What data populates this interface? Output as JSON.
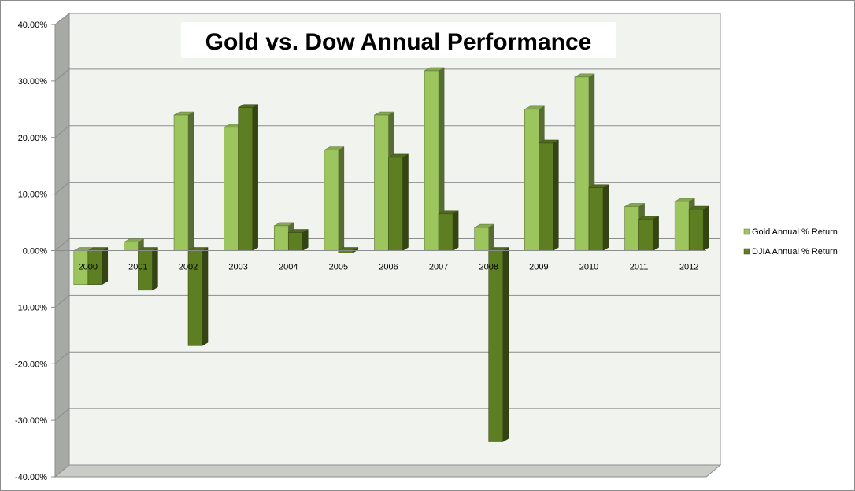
{
  "chart_data": {
    "type": "bar",
    "title": "Gold vs. Dow Annual Performance",
    "xlabel": "",
    "ylabel": "",
    "categories": [
      "2000",
      "2001",
      "2002",
      "2003",
      "2004",
      "2005",
      "2006",
      "2007",
      "2008",
      "2009",
      "2010",
      "2011",
      "2012"
    ],
    "series": [
      {
        "name": "Gold Annual % Return",
        "color": "#9dc55e",
        "values": [
          -6.0,
          1.5,
          24.0,
          21.8,
          4.4,
          17.8,
          24.0,
          31.8,
          4.1,
          25.0,
          30.7,
          7.8,
          8.7
        ]
      },
      {
        "name": "DJIA Annual % Return",
        "color": "#5e7e22",
        "values": [
          -6.0,
          -7.0,
          -16.8,
          25.3,
          3.2,
          -0.4,
          16.5,
          6.5,
          -33.8,
          19.0,
          11.1,
          5.6,
          7.3
        ]
      }
    ],
    "ylim": [
      -40,
      40
    ],
    "yticks": [
      "-40.00%",
      "-30.00%",
      "-20.00%",
      "-10.00%",
      "0.00%",
      "10.00%",
      "20.00%",
      "30.00%",
      "40.00%"
    ],
    "grid": true,
    "legend": "right"
  }
}
